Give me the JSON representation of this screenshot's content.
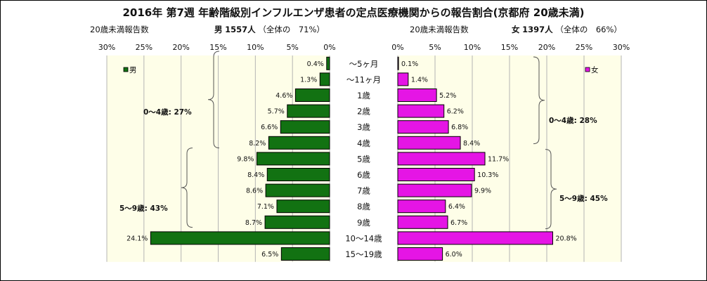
{
  "title": "2016年 第7週 年齢階級別インフルエンザ患者の定点医療機関からの報告割合(京都府 20歳未満)",
  "male_header": {
    "left": "20歳未満報告数",
    "name": "男",
    "count": "1557人",
    "share": "（全体の　71%）"
  },
  "female_header": {
    "left": "20歳未満報告数",
    "name": "女",
    "count": "1397人",
    "share": "（全体の　66%）"
  },
  "legend": {
    "male": "男",
    "female": "女"
  },
  "colors": {
    "male": "#127212",
    "female": "#e515e5",
    "plot_bg": "#fefee8",
    "grid": "#b4b4b4"
  },
  "groups": {
    "male_0_4": "0～4歳: 27%",
    "male_5_9": "5～9歳: 43%",
    "female_0_4": "0～4歳: 28%",
    "female_5_9": "5～9歳: 45%"
  },
  "chart_data": {
    "type": "bar",
    "orientation": "horizontal",
    "layout": "population-pyramid",
    "categories": [
      "～5ヶ月",
      "～11ヶ月",
      "1歳",
      "2歳",
      "3歳",
      "4歳",
      "5歳",
      "6歳",
      "7歳",
      "8歳",
      "9歳",
      "10～14歳",
      "15～19歳"
    ],
    "series": [
      {
        "name": "男",
        "values": [
          0.4,
          1.3,
          4.6,
          5.7,
          6.6,
          8.2,
          9.8,
          8.4,
          8.6,
          7.1,
          8.7,
          24.1,
          6.5
        ],
        "labels": [
          "0.4%",
          "1.3%",
          "4.6%",
          "5.7%",
          "6.6%",
          "8.2%",
          "9.8%",
          "8.4%",
          "8.6%",
          "7.1%",
          "8.7%",
          "24.1%",
          "6.5%"
        ]
      },
      {
        "name": "女",
        "values": [
          0.1,
          1.4,
          5.2,
          6.2,
          6.8,
          8.4,
          11.7,
          10.3,
          9.9,
          6.4,
          6.7,
          20.8,
          6.0
        ],
        "labels": [
          "0.1%",
          "1.4%",
          "5.2%",
          "6.2%",
          "6.8%",
          "8.4%",
          "11.7%",
          "10.3%",
          "9.9%",
          "6.4%",
          "6.7%",
          "20.8%",
          "6.0%"
        ]
      }
    ],
    "xlim": [
      0,
      30
    ],
    "male_ticks": [
      "30%",
      "25%",
      "20%",
      "15%",
      "10%",
      "5%",
      "0%"
    ],
    "female_ticks": [
      "0%",
      "5%",
      "10%",
      "15%",
      "20%",
      "25%",
      "30%"
    ],
    "grid": true
  }
}
